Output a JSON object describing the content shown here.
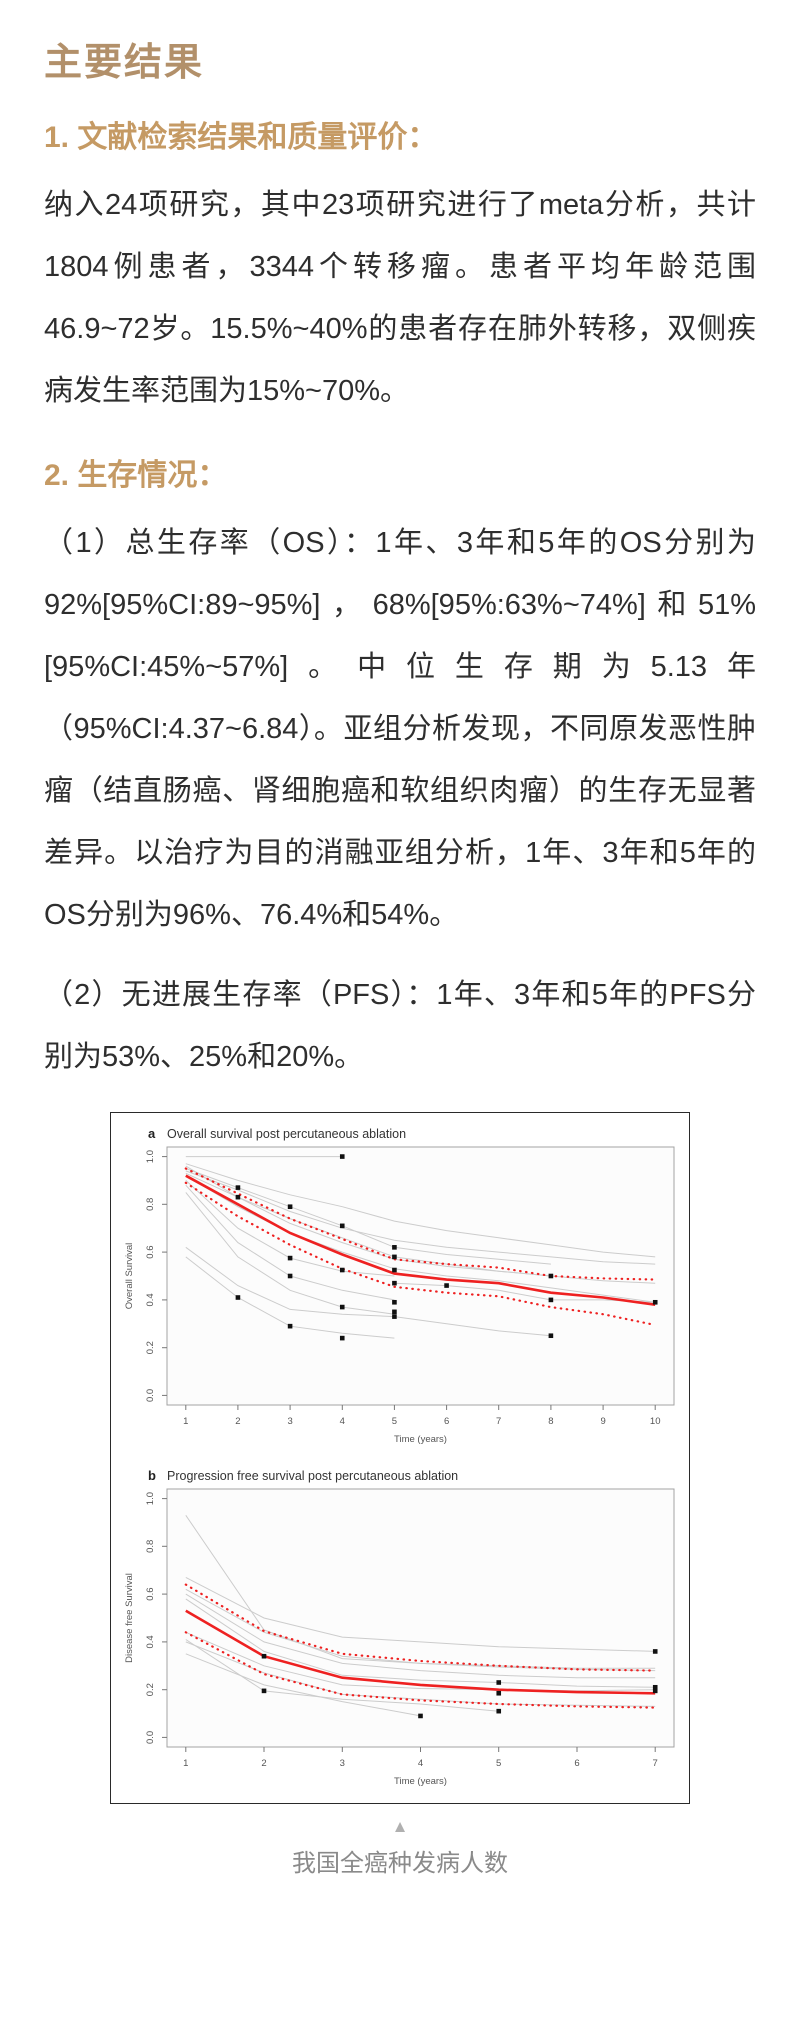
{
  "article": {
    "title": "主要结果",
    "sections": [
      {
        "heading": "1. 文献检索结果和质量评价：",
        "body": "纳入24项研究，其中23项研究进行了meta分析，共计1804例患者，3344个转移瘤。患者平均年龄范围46.9~72岁。15.5%~40%的患者存在肺外转移，双侧疾病发生率范围为15%~70%。"
      },
      {
        "heading": "2. 生存情况：",
        "para1": "（1）总生存率（OS）：1年、3年和5年的OS分别为92%[95%CI:89~95%]，68%[95%:63%~74%]和51%[95%CI:45%~57%]。中位生存期为5.13年（95%CI:4.37~6.84）。亚组分析发现，不同原发恶性肿瘤（结直肠癌、肾细胞癌和软组织肉瘤）的生存无显著差异。以治疗为目的消融亚组分析，1年、3年和5年的OS分别为96%、76.4%和54%。",
        "para2": "（2）无进展生存率（PFS）：1年、3年和5年的PFS分别为53%、25%和20%。"
      }
    ]
  },
  "footer": {
    "triangle_icon": "▲",
    "caption": "我国全癌种发病人数"
  },
  "colors": {
    "title_gold": "#b2906a",
    "heading_gold": "#c59a64",
    "body_text": "#2e2e2e",
    "chart_red": "#ee2121",
    "chart_grey": "#cccccc",
    "chart_point": "#111111",
    "caption_grey": "#8a8a8a"
  },
  "chart_data": [
    {
      "type": "line",
      "panel": "a",
      "title": "Overall survival post percutaneous ablation",
      "xlabel": "Time (years)",
      "ylabel": "Overall Survival",
      "xlim": [
        1,
        10
      ],
      "ylim": [
        0,
        1
      ],
      "xticks": [
        1,
        2,
        3,
        4,
        5,
        6,
        7,
        8,
        9,
        10
      ],
      "yticks": [
        0.0,
        0.2,
        0.4,
        0.6,
        0.8,
        1.0
      ],
      "series": [
        {
          "name": "pooled OS estimate",
          "style": "solid-red",
          "points": [
            [
              1,
              0.92
            ],
            [
              2,
              0.8
            ],
            [
              3,
              0.68
            ],
            [
              4,
              0.59
            ],
            [
              5,
              0.51
            ],
            [
              6,
              0.485
            ],
            [
              7,
              0.47
            ],
            [
              8,
              0.43
            ],
            [
              9,
              0.41
            ],
            [
              10,
              0.38
            ]
          ]
        },
        {
          "name": "95% CI upper",
          "style": "dotted-red",
          "points": [
            [
              1,
              0.95
            ],
            [
              2,
              0.845
            ],
            [
              3,
              0.74
            ],
            [
              4,
              0.655
            ],
            [
              5,
              0.57
            ],
            [
              6,
              0.55
            ],
            [
              7,
              0.535
            ],
            [
              8,
              0.5
            ],
            [
              9,
              0.49
            ],
            [
              10,
              0.485
            ]
          ]
        },
        {
          "name": "95% CI lower",
          "style": "dotted-red",
          "points": [
            [
              1,
              0.89
            ],
            [
              2,
              0.75
            ],
            [
              3,
              0.63
            ],
            [
              4,
              0.53
            ],
            [
              5,
              0.455
            ],
            [
              6,
              0.43
            ],
            [
              7,
              0.415
            ],
            [
              8,
              0.37
            ],
            [
              9,
              0.34
            ],
            [
              10,
              0.295
            ]
          ]
        }
      ],
      "study_lines": [
        [
          [
            1,
            1.0
          ],
          [
            4,
            1.0
          ]
        ],
        [
          [
            1,
            0.97
          ],
          [
            2,
            0.9
          ],
          [
            3,
            0.84
          ],
          [
            4,
            0.79
          ],
          [
            5,
            0.73
          ],
          [
            6,
            0.69
          ],
          [
            7,
            0.66
          ],
          [
            8,
            0.63
          ],
          [
            9,
            0.6
          ],
          [
            10,
            0.58
          ]
        ],
        [
          [
            1,
            0.95
          ],
          [
            2,
            0.87
          ],
          [
            3,
            0.79
          ],
          [
            4,
            0.71
          ],
          [
            5,
            0.62
          ],
          [
            6,
            0.59
          ],
          [
            7,
            0.57
          ],
          [
            8,
            0.55
          ]
        ],
        [
          [
            1,
            0.93
          ],
          [
            2,
            0.83
          ],
          [
            3,
            0.74
          ],
          [
            4,
            0.66
          ],
          [
            5,
            0.58
          ],
          [
            6,
            0.55
          ],
          [
            7,
            0.52
          ],
          [
            8,
            0.5
          ],
          [
            9,
            0.48
          ],
          [
            10,
            0.47
          ]
        ],
        [
          [
            1,
            0.92
          ],
          [
            2,
            0.79
          ],
          [
            3,
            0.68
          ],
          [
            4,
            0.6
          ],
          [
            5,
            0.53
          ],
          [
            6,
            0.5
          ],
          [
            7,
            0.48
          ],
          [
            8,
            0.45
          ],
          [
            9,
            0.42
          ],
          [
            10,
            0.39
          ]
        ],
        [
          [
            1,
            0.9
          ],
          [
            2,
            0.7
          ],
          [
            3,
            0.575
          ],
          [
            4,
            0.52
          ],
          [
            5,
            0.5
          ]
        ],
        [
          [
            1,
            0.88
          ],
          [
            2,
            0.64
          ],
          [
            3,
            0.5
          ],
          [
            4,
            0.44
          ],
          [
            5,
            0.4
          ]
        ],
        [
          [
            1,
            0.85
          ],
          [
            2,
            0.58
          ],
          [
            3,
            0.44
          ],
          [
            4,
            0.37
          ],
          [
            5,
            0.34
          ]
        ],
        [
          [
            1,
            0.62
          ],
          [
            2,
            0.46
          ],
          [
            3,
            0.36
          ],
          [
            4,
            0.34
          ],
          [
            5,
            0.33
          ]
        ],
        [
          [
            1,
            0.58
          ],
          [
            2,
            0.41
          ],
          [
            3,
            0.29
          ],
          [
            4,
            0.26
          ],
          [
            5,
            0.24
          ]
        ],
        [
          [
            1,
            0.96
          ],
          [
            2,
            0.83
          ],
          [
            3,
            0.72
          ],
          [
            4,
            0.64
          ],
          [
            5,
            0.57
          ],
          [
            6,
            0.54
          ],
          [
            7,
            0.52
          ],
          [
            8,
            0.5
          ]
        ],
        [
          [
            5,
            0.47
          ],
          [
            6,
            0.46
          ],
          [
            7,
            0.44
          ],
          [
            8,
            0.4
          ],
          [
            9,
            0.4
          ],
          [
            10,
            0.39
          ]
        ],
        [
          [
            5,
            0.33
          ],
          [
            6,
            0.3
          ],
          [
            7,
            0.27
          ],
          [
            8,
            0.25
          ]
        ],
        [
          [
            1,
            0.94
          ],
          [
            2,
            0.86
          ],
          [
            3,
            0.77
          ],
          [
            4,
            0.7
          ],
          [
            5,
            0.65
          ],
          [
            6,
            0.62
          ],
          [
            7,
            0.6
          ],
          [
            8,
            0.58
          ],
          [
            9,
            0.56
          ],
          [
            10,
            0.55
          ]
        ]
      ],
      "study_points": [
        [
          2,
          0.87
        ],
        [
          2,
          0.83
        ],
        [
          3,
          0.79
        ],
        [
          4,
          1.0
        ],
        [
          4,
          0.71
        ],
        [
          3,
          0.575
        ],
        [
          3,
          0.5
        ],
        [
          4,
          0.525
        ],
        [
          2,
          0.41
        ],
        [
          4,
          0.37
        ],
        [
          3,
          0.29
        ],
        [
          4,
          0.24
        ],
        [
          5,
          0.62
        ],
        [
          5,
          0.58
        ],
        [
          5,
          0.525
        ],
        [
          5,
          0.47
        ],
        [
          5,
          0.39
        ],
        [
          5,
          0.35
        ],
        [
          5,
          0.33
        ],
        [
          6,
          0.46
        ],
        [
          8,
          0.5
        ],
        [
          8,
          0.4
        ],
        [
          8,
          0.25
        ],
        [
          10,
          0.39
        ]
      ]
    },
    {
      "type": "line",
      "panel": "b",
      "title": "Progression free survival post percutaneous ablation",
      "xlabel": "Time (years)",
      "ylabel": "Disease free Survival",
      "xlim": [
        1,
        7
      ],
      "ylim": [
        0,
        1
      ],
      "xticks": [
        1,
        2,
        3,
        4,
        5,
        6,
        7
      ],
      "yticks": [
        0.0,
        0.2,
        0.4,
        0.6,
        0.8,
        1.0
      ],
      "series": [
        {
          "name": "pooled PFS estimate",
          "style": "solid-red",
          "points": [
            [
              1,
              0.53
            ],
            [
              2,
              0.34
            ],
            [
              3,
              0.25
            ],
            [
              4,
              0.22
            ],
            [
              5,
              0.2
            ],
            [
              6,
              0.19
            ],
            [
              7,
              0.185
            ]
          ]
        },
        {
          "name": "95% CI upper",
          "style": "dotted-red",
          "points": [
            [
              1,
              0.64
            ],
            [
              2,
              0.445
            ],
            [
              3,
              0.35
            ],
            [
              4,
              0.32
            ],
            [
              5,
              0.3
            ],
            [
              6,
              0.285
            ],
            [
              7,
              0.28
            ]
          ]
        },
        {
          "name": "95% CI lower",
          "style": "dotted-red",
          "points": [
            [
              1,
              0.44
            ],
            [
              2,
              0.265
            ],
            [
              3,
              0.18
            ],
            [
              4,
              0.155
            ],
            [
              5,
              0.14
            ],
            [
              6,
              0.13
            ],
            [
              7,
              0.125
            ]
          ]
        }
      ],
      "study_lines": [
        [
          [
            1,
            0.93
          ],
          [
            2,
            0.45
          ],
          [
            3,
            0.33
          ],
          [
            4,
            0.31
          ],
          [
            5,
            0.3
          ],
          [
            6,
            0.29
          ],
          [
            7,
            0.29
          ]
        ],
        [
          [
            1,
            0.67
          ],
          [
            2,
            0.5
          ],
          [
            3,
            0.42
          ],
          [
            4,
            0.4
          ],
          [
            5,
            0.38
          ],
          [
            6,
            0.37
          ],
          [
            7,
            0.36
          ]
        ],
        [
          [
            1,
            0.62
          ],
          [
            2,
            0.44
          ],
          [
            3,
            0.34
          ],
          [
            4,
            0.31
          ],
          [
            5,
            0.295
          ],
          [
            6,
            0.285
          ],
          [
            7,
            0.28
          ]
        ],
        [
          [
            1,
            0.6
          ],
          [
            2,
            0.4
          ],
          [
            3,
            0.31
          ],
          [
            4,
            0.28
          ],
          [
            5,
            0.26
          ],
          [
            6,
            0.25
          ],
          [
            7,
            0.25
          ]
        ],
        [
          [
            1,
            0.58
          ],
          [
            2,
            0.36
          ],
          [
            3,
            0.26
          ],
          [
            4,
            0.24
          ],
          [
            5,
            0.23
          ],
          [
            6,
            0.215
          ],
          [
            7,
            0.21
          ]
        ],
        [
          [
            1,
            0.44
          ],
          [
            2,
            0.3
          ],
          [
            3,
            0.22
          ],
          [
            4,
            0.205
          ],
          [
            5,
            0.2
          ],
          [
            6,
            0.195
          ],
          [
            7,
            0.2
          ]
        ],
        [
          [
            1,
            0.4
          ],
          [
            2,
            0.27
          ],
          [
            3,
            0.18
          ],
          [
            4,
            0.16
          ],
          [
            5,
            0.14
          ],
          [
            6,
            0.135
          ],
          [
            7,
            0.13
          ]
        ],
        [
          [
            1,
            0.35
          ],
          [
            2,
            0.22
          ],
          [
            3,
            0.15
          ],
          [
            4,
            0.09
          ]
        ],
        [
          [
            1,
            0.41
          ],
          [
            2,
            0.195
          ],
          [
            3,
            0.16
          ],
          [
            4,
            0.14
          ],
          [
            5,
            0.11
          ]
        ]
      ],
      "study_points": [
        [
          2,
          0.34
        ],
        [
          2,
          0.195
        ],
        [
          4,
          0.09
        ],
        [
          5,
          0.23
        ],
        [
          5,
          0.185
        ],
        [
          5,
          0.11
        ],
        [
          7,
          0.36
        ],
        [
          7,
          0.21
        ],
        [
          7,
          0.195
        ]
      ]
    }
  ]
}
